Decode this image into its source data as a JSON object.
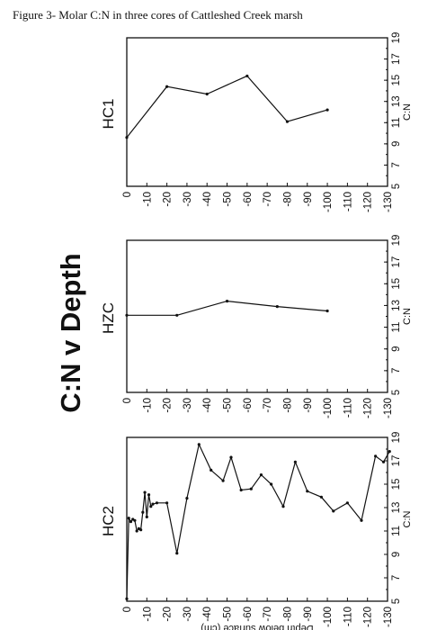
{
  "figure_caption": "Figure 3- Molar C:N in three cores of Cattleshed Creek marsh",
  "main_title": "C:N v Depth",
  "colors": {
    "ink": "#111111",
    "background": "#ffffff"
  },
  "chart_data": [
    {
      "type": "line",
      "panel": "HC1",
      "core_label": "HC1",
      "depth_axis": {
        "label": "",
        "ticks": [
          0,
          -10,
          -20,
          -30,
          -40,
          -50,
          -60,
          -70,
          -80,
          -90,
          -100,
          -110,
          -120,
          -130
        ],
        "range": [
          0,
          -130
        ]
      },
      "value_axis": {
        "label": "C:N",
        "ticks": [
          5,
          7,
          9,
          11,
          13,
          15,
          17,
          19
        ],
        "range": [
          5,
          19
        ]
      },
      "x": [
        0,
        -20,
        -40,
        -60,
        -80,
        -100
      ],
      "y": [
        9.6,
        14.4,
        13.7,
        15.4,
        11.1,
        12.2
      ]
    },
    {
      "type": "line",
      "panel": "HZC",
      "core_label": "HZC",
      "depth_axis": {
        "label": "",
        "ticks": [
          0,
          -10,
          -20,
          -30,
          -40,
          -50,
          -60,
          -70,
          -80,
          -90,
          -100,
          -110,
          -120,
          -130
        ],
        "range": [
          0,
          -130
        ]
      },
      "value_axis": {
        "label": "C:N",
        "ticks": [
          5,
          7,
          9,
          11,
          13,
          15,
          17,
          19
        ],
        "range": [
          5,
          19
        ]
      },
      "x": [
        0,
        -25,
        -50,
        -75,
        -100
      ],
      "y": [
        12.1,
        12.1,
        13.4,
        12.9,
        12.5
      ]
    },
    {
      "type": "line",
      "panel": "HC2",
      "core_label": "HC2",
      "depth_axis": {
        "label": "Depth below surface (cm)",
        "ticks": [
          0,
          -10,
          -20,
          -30,
          -40,
          -50,
          -60,
          -70,
          -80,
          -90,
          -100,
          -110,
          -120,
          -130
        ],
        "range": [
          0,
          -130
        ]
      },
      "value_axis": {
        "label": "C:N",
        "ticks": [
          5,
          7,
          9,
          11,
          13,
          15,
          17,
          19
        ],
        "range": [
          5,
          19
        ]
      },
      "x": [
        0,
        -1,
        -2,
        -3,
        -4,
        -5,
        -6,
        -7,
        -8,
        -9,
        -10,
        -11,
        -12,
        -13,
        -15,
        -20,
        -25,
        -30,
        -36,
        -42,
        -48,
        -52,
        -57,
        -62,
        -67,
        -72,
        -78,
        -84,
        -90,
        -97,
        -103,
        -110,
        -117,
        -124,
        -128,
        -131
      ],
      "y": [
        5.2,
        12.1,
        11.8,
        12.0,
        11.9,
        11.0,
        11.2,
        11.1,
        12.6,
        14.3,
        12.2,
        14.1,
        13.1,
        13.3,
        13.4,
        13.4,
        9.1,
        13.8,
        18.4,
        16.2,
        15.3,
        17.3,
        14.5,
        14.6,
        15.8,
        15.0,
        13.1,
        16.9,
        14.4,
        13.9,
        12.7,
        13.4,
        11.9,
        17.4,
        16.9,
        17.8
      ]
    }
  ]
}
